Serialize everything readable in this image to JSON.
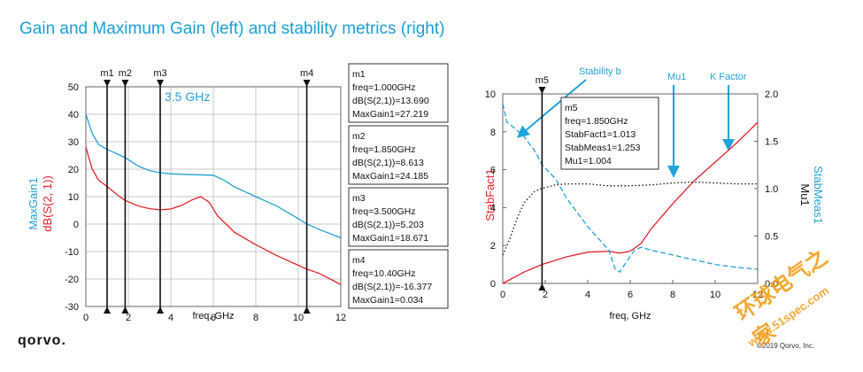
{
  "title": "Gain and Maximum Gain (left) and stability metrics (right)",
  "logo": "qorvo.",
  "copyright": "©2019 Qorvo, Inc.",
  "watermark": {
    "cn": "环球电气之家",
    "url": "www.51spec.com"
  },
  "colors": {
    "red": "#e8202a",
    "blue": "#21a3d9",
    "black": "#111111",
    "title": "#1aa0d8"
  },
  "chart_data": [
    {
      "type": "line",
      "xlabel": "freq, GHz",
      "ylabel_parts": [
        "MaxGain1",
        "dB(S(2, 1))"
      ],
      "xlim": [
        0,
        12
      ],
      "ylim": [
        -30,
        50
      ],
      "xticks": [
        0,
        2,
        4,
        6,
        8,
        10,
        12
      ],
      "yticks": [
        -30,
        -20,
        -10,
        0,
        10,
        20,
        30,
        40,
        50
      ],
      "grid": true,
      "annotation": "3.5 GHz",
      "series": [
        {
          "name": "MaxGain1",
          "color": "blue",
          "x": [
            0,
            0.3,
            0.6,
            1.0,
            1.5,
            1.85,
            2.5,
            3.0,
            3.5,
            4.0,
            5.0,
            6.0,
            6.5,
            7.0,
            8.0,
            9.0,
            10.0,
            10.4,
            11.0,
            12.0
          ],
          "y": [
            40,
            33,
            29,
            27.2,
            25.5,
            24.2,
            21,
            19.5,
            18.7,
            18.3,
            18,
            17.8,
            16,
            13.5,
            10,
            6.5,
            2,
            0.03,
            -2,
            -5
          ]
        },
        {
          "name": "dB(S(2,1))",
          "color": "red",
          "x": [
            0,
            0.3,
            0.6,
            1.0,
            1.5,
            1.85,
            2.5,
            3.0,
            3.5,
            4.0,
            4.5,
            5.0,
            5.4,
            5.8,
            6.2,
            7.0,
            8.0,
            9.0,
            10.0,
            10.4,
            11.0,
            12.0
          ],
          "y": [
            28,
            20,
            16,
            13.7,
            10.5,
            8.6,
            6.5,
            5.6,
            5.2,
            5.5,
            6.8,
            8.8,
            10,
            8,
            3,
            -3,
            -7.5,
            -11.5,
            -15,
            -16.4,
            -18,
            -22
          ]
        }
      ],
      "markers": [
        {
          "name": "m1",
          "x": 1.0,
          "lines": [
            "m1",
            "freq=1.000GHz",
            "dB(S(2,1))=13.690",
            "MaxGain1=27.219"
          ]
        },
        {
          "name": "m2",
          "x": 1.85,
          "lines": [
            "m2",
            "freq=1.850GHz",
            "dB(S(2,1))=8.613",
            "MaxGain1=24.185"
          ]
        },
        {
          "name": "m3",
          "x": 3.5,
          "lines": [
            "m3",
            "freq=3.500GHz",
            "dB(S(2,1))=5.203",
            "MaxGain1=18.671"
          ]
        },
        {
          "name": "m4",
          "x": 10.4,
          "lines": [
            "m4",
            "freq=10.40GHz",
            "dB(S(2,1))=-16.377",
            "MaxGain1=0.034"
          ]
        }
      ]
    },
    {
      "type": "line",
      "xlabel": "freq, GHz",
      "ylabel_left": "StabFact1",
      "ylabel_right_parts": [
        "Mu1",
        "StabMeas1"
      ],
      "xlim": [
        0,
        12
      ],
      "ylim_left": [
        0,
        10
      ],
      "ylim_right": [
        0,
        2.0
      ],
      "xticks": [
        0,
        2,
        4,
        6,
        8,
        10,
        12
      ],
      "yticks_left": [
        0,
        2,
        4,
        6,
        8,
        10
      ],
      "yticks_right": [
        "0.0",
        "0.5",
        "1.0",
        "1.5",
        "2.0"
      ],
      "yticks_right_values": [
        0,
        0.5,
        1.0,
        1.5,
        2.0
      ],
      "grid": false,
      "series": [
        {
          "name": "StabFact1",
          "color": "red",
          "axis": "left",
          "x": [
            0,
            1,
            1.85,
            3,
            4,
            5,
            5.5,
            6,
            6.5,
            7,
            8,
            9,
            10,
            11,
            12
          ],
          "y": [
            0,
            0.6,
            1.0,
            1.4,
            1.65,
            1.7,
            1.6,
            1.7,
            2.1,
            2.9,
            4.2,
            5.4,
            6.4,
            7.4,
            8.5
          ]
        },
        {
          "name": "StabMeas1",
          "color": "blue",
          "axis": "right",
          "x": [
            0,
            0.2,
            0.5,
            1,
            1.5,
            1.85,
            2.5,
            3,
            4,
            5,
            5.3,
            5.5,
            5.8,
            6.2,
            6.5,
            7,
            8,
            9,
            10,
            11,
            12
          ],
          "y": [
            1.9,
            1.7,
            1.65,
            1.55,
            1.4,
            1.253,
            1.1,
            0.9,
            0.6,
            0.35,
            0.15,
            0.12,
            0.22,
            0.35,
            0.38,
            0.35,
            0.3,
            0.25,
            0.2,
            0.17,
            0.15
          ]
        },
        {
          "name": "Mu1",
          "color": "black",
          "axis": "right",
          "x": [
            0,
            0.3,
            0.7,
            1,
            1.5,
            1.85,
            2.5,
            3,
            4,
            5,
            6,
            7,
            8,
            9,
            10,
            11,
            12
          ],
          "y": [
            0.3,
            0.45,
            0.7,
            0.85,
            0.97,
            1.004,
            1.04,
            1.05,
            1.05,
            1.03,
            1.03,
            1.04,
            1.06,
            1.07,
            1.06,
            1.05,
            1.05
          ]
        }
      ],
      "markers": [
        {
          "name": "m5",
          "x": 1.85,
          "lines": [
            "m5",
            "freq=1.850GHz",
            "StabFact1=1.013",
            "StabMeas1=1.253",
            "Mu1=1.004"
          ]
        }
      ],
      "annotations": [
        "Stability b",
        "Mu1",
        "K Factor"
      ]
    }
  ]
}
